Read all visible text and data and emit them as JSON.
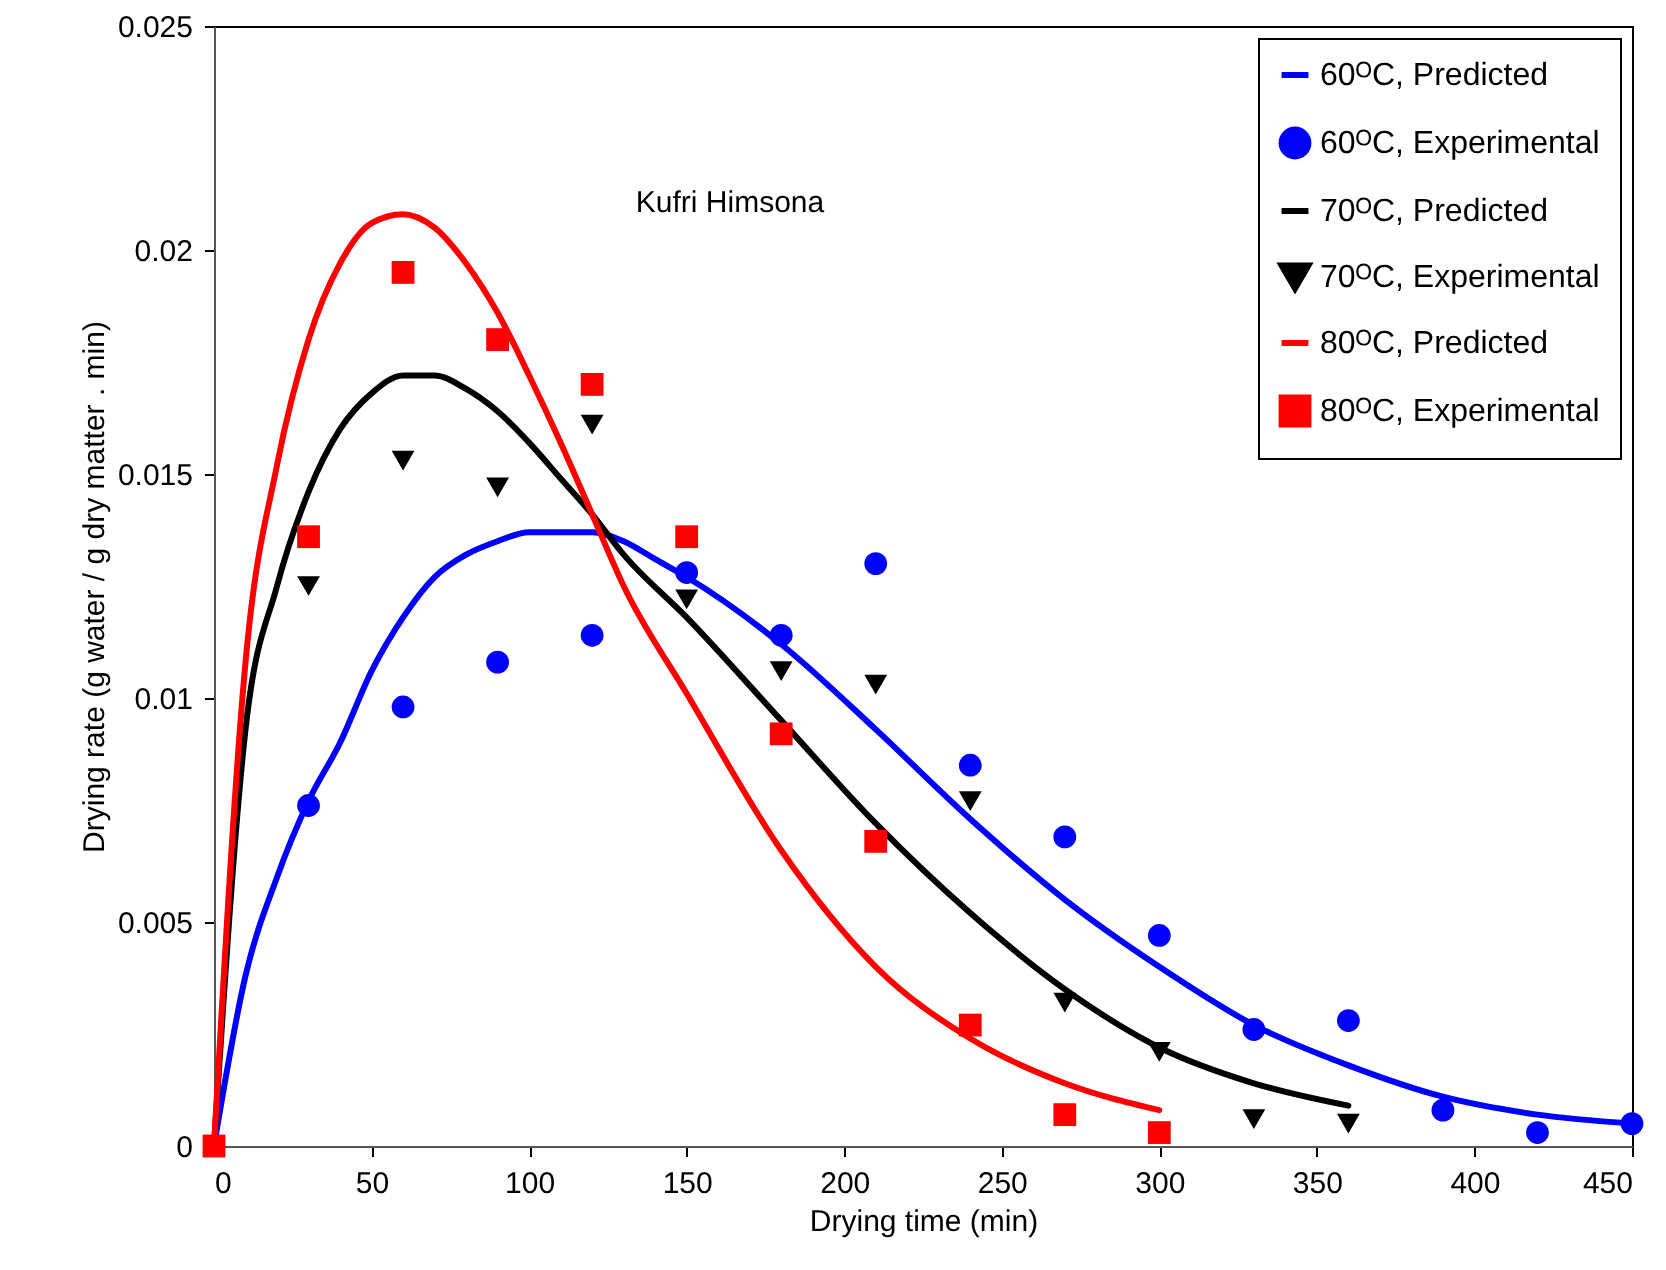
{
  "chart_data": {
    "type": "line",
    "xlabel": "Drying time (min)",
    "ylabel": "Drying rate (g water / g dry matter . min)",
    "annotations": [
      "Kufri Himsona"
    ],
    "xlim": [
      0,
      450
    ],
    "xticks": [
      0,
      50,
      100,
      150,
      200,
      250,
      300,
      350,
      400,
      450
    ],
    "ylim": [
      0,
      0.025
    ],
    "yticks": [
      0,
      0.005,
      0.01,
      0.015,
      0.02,
      0.025
    ],
    "grid": false,
    "legend": "top right",
    "series": [
      {
        "name": "60ᴼC, Predicted",
        "color": "#0000ff",
        "line_style": "solid",
        "x": [
          0,
          10,
          20,
          30,
          40,
          50,
          60,
          70,
          80,
          90,
          100,
          110,
          120,
          130,
          140,
          150,
          180,
          210,
          240,
          270,
          300,
          330,
          360,
          390,
          420,
          450
        ],
        "values": [
          0,
          0.0038,
          0.006,
          0.0077,
          0.009,
          0.0106,
          0.0118,
          0.0127,
          0.0132,
          0.0135,
          0.0137,
          0.0137,
          0.0137,
          0.0135,
          0.0131,
          0.0127,
          0.0112,
          0.0093,
          0.0073,
          0.0055,
          0.004,
          0.0027,
          0.0018,
          0.0011,
          0.0007,
          0.0005
        ]
      },
      {
        "name": "60ᴼC, Experimental",
        "type": "scatter",
        "color": "#0000ff",
        "marker": "circle",
        "x": [
          30,
          60,
          90,
          120,
          150,
          180,
          210,
          240,
          270,
          300,
          330,
          360,
          390,
          420,
          450
        ],
        "values": [
          0.0076,
          0.0098,
          0.0108,
          0.0114,
          0.0128,
          0.0114,
          0.013,
          0.0085,
          0.0069,
          0.0047,
          0.0026,
          0.0028,
          0.0008,
          0.0003,
          0.0005
        ]
      },
      {
        "name": "70ᴼC, Predicted",
        "color": "#000000",
        "line_style": "solid",
        "x": [
          0,
          10,
          20,
          30,
          40,
          50,
          60,
          70,
          80,
          90,
          100,
          110,
          120,
          130,
          150,
          180,
          210,
          240,
          270,
          300,
          330,
          360
        ],
        "values": [
          0,
          0.0093,
          0.0125,
          0.0146,
          0.016,
          0.0168,
          0.0172,
          0.0172,
          0.0169,
          0.0164,
          0.0157,
          0.0149,
          0.0141,
          0.0132,
          0.0118,
          0.0095,
          0.0072,
          0.0052,
          0.0035,
          0.0022,
          0.0014,
          0.0009
        ]
      },
      {
        "name": "70ᴼC, Experimental",
        "type": "scatter",
        "color": "#000000",
        "marker": "triangle-down",
        "x": [
          30,
          60,
          90,
          120,
          150,
          180,
          210,
          240,
          270,
          300,
          330,
          360
        ],
        "values": [
          0.0125,
          0.0153,
          0.0147,
          0.0161,
          0.0122,
          0.0106,
          0.0103,
          0.0077,
          0.0032,
          0.0021,
          0.0006,
          0.0005
        ]
      },
      {
        "name": "80ᴼC, Predicted",
        "color": "#ff0000",
        "line_style": "solid",
        "x": [
          0,
          10,
          20,
          30,
          40,
          50,
          60,
          70,
          80,
          90,
          100,
          110,
          120,
          130,
          150,
          180,
          210,
          240,
          270,
          300
        ],
        "values": [
          0,
          0.0108,
          0.0152,
          0.018,
          0.0197,
          0.0206,
          0.0208,
          0.0205,
          0.0197,
          0.0186,
          0.0172,
          0.0157,
          0.0141,
          0.0125,
          0.0101,
          0.0066,
          0.004,
          0.0024,
          0.0014,
          0.0008
        ]
      },
      {
        "name": "80ᴼC, Experimental",
        "type": "scatter",
        "color": "#ff0000",
        "marker": "square",
        "x": [
          0,
          30,
          60,
          90,
          120,
          150,
          180,
          210,
          240,
          270,
          300
        ],
        "values": [
          0,
          0.0136,
          0.0195,
          0.018,
          0.017,
          0.0136,
          0.0092,
          0.0068,
          0.0027,
          0.0007,
          0.0003
        ]
      }
    ]
  }
}
